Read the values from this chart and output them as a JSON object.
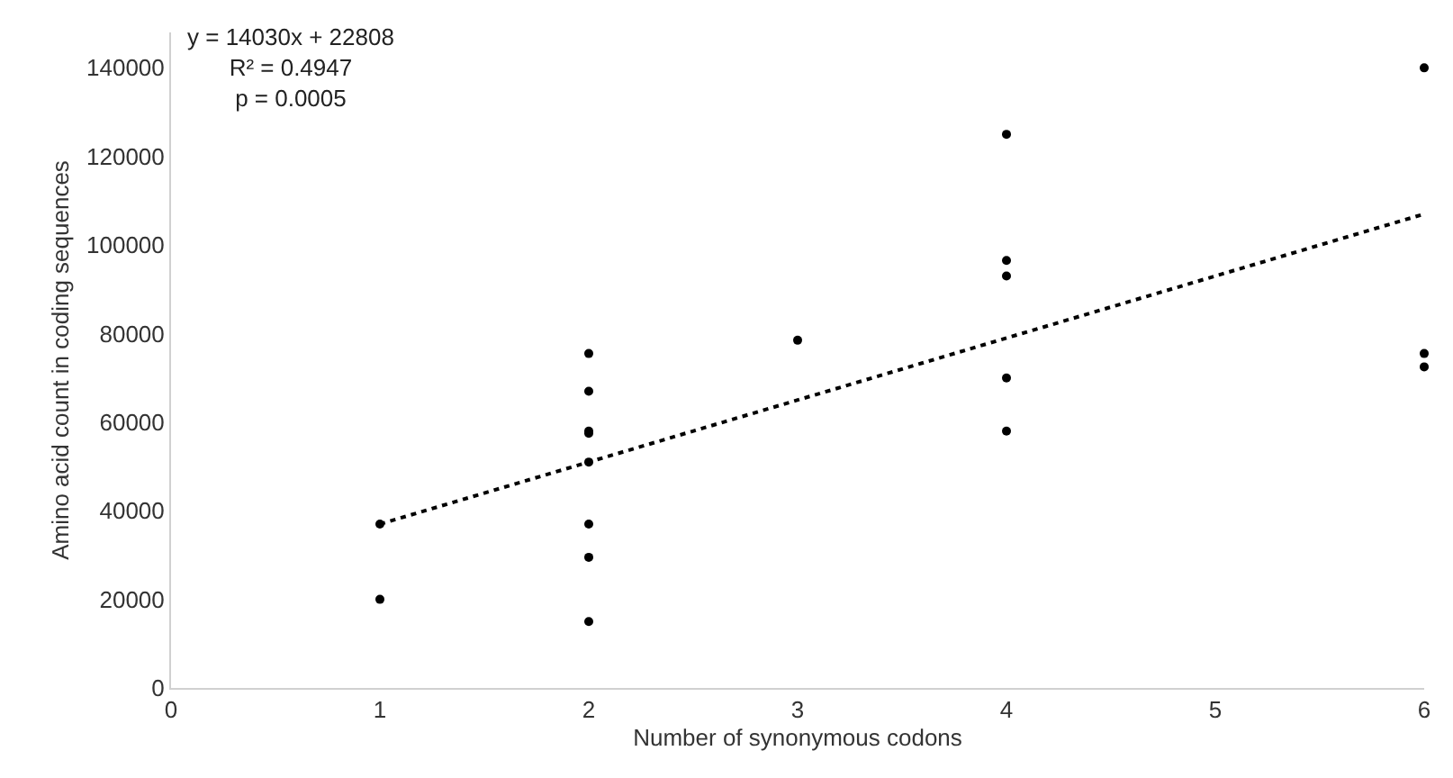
{
  "chart_data": {
    "type": "scatter",
    "xlabel": "Number of synonymous codons",
    "ylabel": "Amino acid count in coding sequences",
    "annotations": [
      "y = 14030x + 22808\nR² = 0.4947\np = 0.0005"
    ],
    "series": [
      {
        "color": "#000000",
        "marker": "circle",
        "x": [
          1,
          1,
          2,
          2,
          2,
          2,
          2,
          2,
          2,
          2,
          3,
          4,
          4,
          4,
          4,
          4,
          6,
          6,
          6
        ],
        "values": [
          37000,
          20000,
          75500,
          67000,
          58000,
          57500,
          51000,
          37000,
          29500,
          15000,
          78500,
          125000,
          96500,
          93000,
          70000,
          58000,
          140000,
          75500,
          72500
        ]
      },
      {
        "type": "line",
        "color": "#000000",
        "line_style": "dotted",
        "x": [
          1,
          6
        ],
        "values": [
          37000,
          107000
        ]
      }
    ],
    "xlim": [
      0,
      6
    ],
    "xticks": [
      0,
      1,
      2,
      3,
      4,
      5,
      6
    ],
    "ylim": [
      0,
      148000
    ],
    "yticks": [
      0,
      20000,
      40000,
      60000,
      80000,
      100000,
      120000,
      140000
    ]
  }
}
